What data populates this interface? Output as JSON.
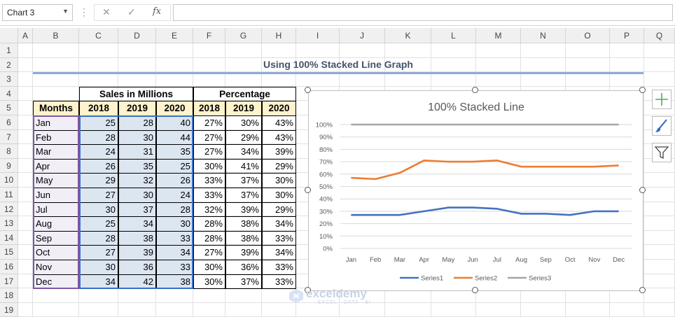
{
  "formula_bar": {
    "name_box": "Chart 3",
    "fx": "fx"
  },
  "columns": [
    "A",
    "B",
    "C",
    "D",
    "E",
    "F",
    "G",
    "H",
    "I",
    "J",
    "K",
    "L",
    "M",
    "N",
    "O",
    "P",
    "Q"
  ],
  "rows": [
    "1",
    "2",
    "3",
    "4",
    "5",
    "6",
    "7",
    "8",
    "9",
    "10",
    "11",
    "12",
    "13",
    "14",
    "15",
    "16",
    "17",
    "18",
    "19"
  ],
  "sheet_title": "Using 100% Stacked Line Graph",
  "table": {
    "group1": "Sales in Millions",
    "group2": "Percentage",
    "months_header": "Months",
    "years": [
      "2018",
      "2019",
      "2020",
      "2018",
      "2019",
      "2020"
    ],
    "rows": [
      [
        "Jan",
        "25",
        "28",
        "40",
        "27%",
        "30%",
        "43%"
      ],
      [
        "Feb",
        "28",
        "30",
        "44",
        "27%",
        "29%",
        "43%"
      ],
      [
        "Mar",
        "24",
        "31",
        "35",
        "27%",
        "34%",
        "39%"
      ],
      [
        "Apr",
        "26",
        "35",
        "25",
        "30%",
        "41%",
        "29%"
      ],
      [
        "May",
        "29",
        "32",
        "26",
        "33%",
        "37%",
        "30%"
      ],
      [
        "Jun",
        "27",
        "30",
        "24",
        "33%",
        "37%",
        "30%"
      ],
      [
        "Jul",
        "30",
        "37",
        "28",
        "32%",
        "39%",
        "29%"
      ],
      [
        "Aug",
        "25",
        "34",
        "30",
        "28%",
        "38%",
        "34%"
      ],
      [
        "Sep",
        "28",
        "38",
        "33",
        "28%",
        "38%",
        "33%"
      ],
      [
        "Oct",
        "27",
        "39",
        "34",
        "27%",
        "39%",
        "34%"
      ],
      [
        "Nov",
        "30",
        "36",
        "33",
        "30%",
        "36%",
        "33%"
      ],
      [
        "Dec",
        "34",
        "42",
        "38",
        "30%",
        "37%",
        "33%"
      ]
    ]
  },
  "chart_data": {
    "type": "line",
    "title": "100% Stacked Line",
    "categories": [
      "Jan",
      "Feb",
      "Mar",
      "Apr",
      "May",
      "Jun",
      "Jul",
      "Aug",
      "Sep",
      "Oct",
      "Nov",
      "Dec"
    ],
    "y_ticks": [
      "0%",
      "10%",
      "20%",
      "30%",
      "40%",
      "50%",
      "60%",
      "70%",
      "80%",
      "90%",
      "100%"
    ],
    "ylim": [
      0,
      100
    ],
    "grid": true,
    "legend_position": "bottom",
    "series": [
      {
        "name": "Series1",
        "color": "#4472c4",
        "values": [
          27,
          27,
          27,
          30,
          33,
          33,
          32,
          28,
          28,
          27,
          30,
          30
        ]
      },
      {
        "name": "Series2",
        "color": "#ed7d31",
        "values": [
          57,
          56,
          61,
          71,
          70,
          70,
          71,
          66,
          66,
          66,
          66,
          67
        ]
      },
      {
        "name": "Series3",
        "color": "#a5a5a5",
        "values": [
          100,
          100,
          100,
          100,
          100,
          100,
          100,
          100,
          100,
          100,
          100,
          100
        ]
      }
    ]
  },
  "watermark": {
    "brand": "exceldemy",
    "tagline": "EXCEL · DATA · BI"
  },
  "side_buttons": [
    "chart-elements-icon",
    "chart-styles-icon",
    "chart-filters-icon"
  ]
}
